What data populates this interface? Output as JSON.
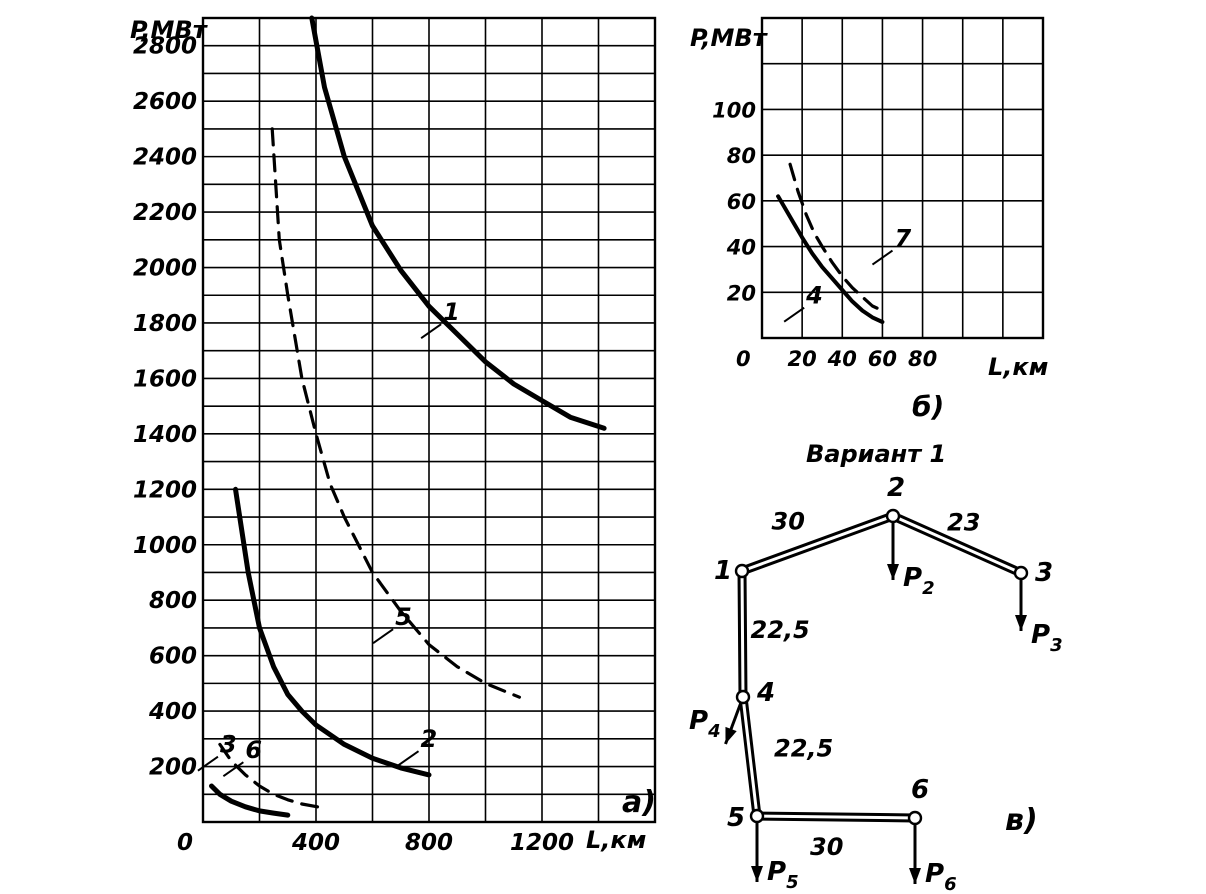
{
  "chart_data": [
    {
      "id": "a",
      "type": "line",
      "panel_label": "а)",
      "ylabel": "P,МВт",
      "xlabel": "L,км",
      "xlim": [
        0,
        1600
      ],
      "ylim": [
        0,
        2900
      ],
      "x_ticks": [
        0,
        400,
        800,
        1200
      ],
      "x_tick_labels": [
        "0",
        "400",
        "800",
        "1200"
      ],
      "y_ticks": [
        200,
        400,
        600,
        800,
        1000,
        1200,
        1400,
        1600,
        1800,
        2000,
        2200,
        2400,
        2600,
        2800
      ],
      "y_tick_labels": [
        "200",
        "400",
        "600",
        "800",
        "1000",
        "1200",
        "1400",
        "1600",
        "1800",
        "2000",
        "2200",
        "2400",
        "2600",
        "2800"
      ],
      "grid": true,
      "series": [
        {
          "name": "1",
          "style": "solid",
          "x": [
            385,
            430,
            500,
            600,
            700,
            800,
            900,
            1000,
            1100,
            1200,
            1300,
            1420
          ],
          "y": [
            2900,
            2650,
            2400,
            2150,
            1990,
            1860,
            1760,
            1660,
            1580,
            1520,
            1460,
            1420
          ]
        },
        {
          "name": "2",
          "style": "solid",
          "x": [
            115,
            160,
            200,
            250,
            300,
            350,
            400,
            500,
            600,
            700,
            800
          ],
          "y": [
            1200,
            900,
            700,
            560,
            460,
            400,
            350,
            280,
            230,
            195,
            170
          ]
        },
        {
          "name": "3",
          "style": "solid",
          "x": [
            30,
            60,
            100,
            150,
            200,
            250,
            300
          ],
          "y": [
            130,
            100,
            75,
            55,
            40,
            32,
            25
          ]
        },
        {
          "name": "5",
          "style": "dashed",
          "x": [
            245,
            270,
            300,
            350,
            400,
            450,
            500,
            600,
            700,
            800,
            900,
            1000,
            1120
          ],
          "y": [
            2500,
            2100,
            1900,
            1600,
            1400,
            1220,
            1100,
            900,
            760,
            640,
            560,
            500,
            450
          ]
        },
        {
          "name": "6",
          "style": "dashed",
          "x": [
            60,
            100,
            150,
            200,
            250,
            300,
            350,
            430
          ],
          "y": [
            280,
            220,
            170,
            130,
            100,
            80,
            65,
            50
          ]
        }
      ],
      "curve_labels": [
        {
          "name": "1",
          "at_x": 850,
          "at_y": 1810
        },
        {
          "name": "2",
          "at_x": 770,
          "at_y": 270
        },
        {
          "name": "3",
          "at_x": 60,
          "at_y": 250
        },
        {
          "name": "5",
          "at_x": 680,
          "at_y": 710
        },
        {
          "name": "6",
          "at_x": 150,
          "at_y": 230
        }
      ]
    },
    {
      "id": "b",
      "type": "line",
      "panel_label": "б)",
      "ylabel": "P,МВт",
      "xlabel": "L,км",
      "xlim": [
        0,
        140
      ],
      "ylim": [
        0,
        140
      ],
      "x_ticks": [
        0,
        20,
        40,
        60,
        80
      ],
      "x_tick_labels": [
        "0",
        "20",
        "40",
        "60",
        "80"
      ],
      "y_ticks": [
        20,
        40,
        60,
        80,
        100
      ],
      "y_tick_labels": [
        "20",
        "40",
        "60",
        "80",
        "100"
      ],
      "grid": true,
      "series": [
        {
          "name": "4",
          "style": "solid",
          "x": [
            8,
            12,
            16,
            20,
            25,
            30,
            35,
            40,
            45,
            50,
            55,
            60
          ],
          "y": [
            62,
            56,
            50,
            44,
            37,
            31,
            26,
            21,
            16,
            12,
            9,
            7
          ]
        },
        {
          "name": "7",
          "style": "dashed",
          "x": [
            14,
            18,
            22,
            26,
            30,
            35,
            40,
            45,
            50,
            55,
            60
          ],
          "y": [
            76,
            64,
            54,
            46,
            40,
            33,
            27,
            22,
            18,
            14,
            12
          ]
        }
      ],
      "curve_labels": [
        {
          "name": "7",
          "at_x": 66,
          "at_y": 40
        },
        {
          "name": "4",
          "at_x": 22,
          "at_y": 15
        }
      ]
    }
  ],
  "diagram": {
    "title": "Вариант 1",
    "panel_label": "в)",
    "nodes": [
      {
        "id": "1",
        "label": "1"
      },
      {
        "id": "2",
        "label": "2"
      },
      {
        "id": "3",
        "label": "3"
      },
      {
        "id": "4",
        "label": "4"
      },
      {
        "id": "5",
        "label": "5"
      },
      {
        "id": "6",
        "label": "6"
      }
    ],
    "edges": [
      {
        "from": "1",
        "to": "2",
        "length": "30"
      },
      {
        "from": "2",
        "to": "3",
        "length": "23"
      },
      {
        "from": "1",
        "to": "4",
        "length": "22,5"
      },
      {
        "from": "4",
        "to": "5",
        "length": "22,5"
      },
      {
        "from": "5",
        "to": "6",
        "length": "30"
      }
    ],
    "loads": [
      {
        "node": "2",
        "label": "P",
        "sub": "2"
      },
      {
        "node": "3",
        "label": "P",
        "sub": "3"
      },
      {
        "node": "4",
        "label": "P",
        "sub": "4"
      },
      {
        "node": "5",
        "label": "P",
        "sub": "5"
      },
      {
        "node": "6",
        "label": "P",
        "sub": "6"
      }
    ]
  }
}
